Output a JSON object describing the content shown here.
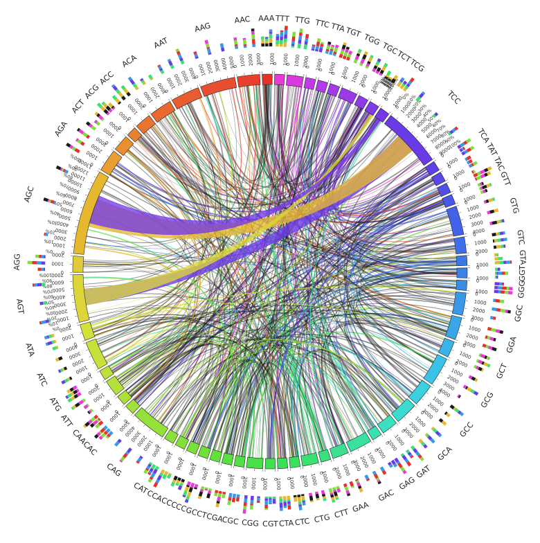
{
  "diagram": {
    "type": "chord",
    "segments": [
      {
        "label": "AAA",
        "color": "#e8302a",
        "max_tick": "1000"
      },
      {
        "label": "TTT",
        "color": "#e83ad6",
        "max_tick": "1000"
      },
      {
        "label": "TTG",
        "color": "#d83ae0",
        "max_tick": "2000"
      },
      {
        "label": "TTC",
        "color": "#c23ae8",
        "max_tick": "1000"
      },
      {
        "label": "TTA",
        "color": "#b33ae8",
        "max_tick": "1000"
      },
      {
        "label": "TGT",
        "color": "#a63ae8",
        "max_tick": "1000"
      },
      {
        "label": "TGG",
        "color": "#9a3ae8",
        "max_tick": "2000"
      },
      {
        "label": "TGC",
        "color": "#8f3ae8",
        "max_tick": "1000"
      },
      {
        "label": "TCT",
        "color": "#7f3ae8",
        "max_tick": "1000"
      },
      {
        "label": "TCG",
        "color": "#7438e8",
        "max_tick": "1000"
      },
      {
        "label": "TCC",
        "color": "#6a3ae8",
        "max_tick": "9000"
      },
      {
        "label": "TCA",
        "color": "#6040e8",
        "max_tick": "1000"
      },
      {
        "label": "TAT",
        "color": "#5a48e8",
        "max_tick": "1000"
      },
      {
        "label": "TAC",
        "color": "#5050e8",
        "max_tick": "1000"
      },
      {
        "label": "GTT",
        "color": "#4a58e8",
        "max_tick": "1000"
      },
      {
        "label": "GTG",
        "color": "#4462e8",
        "max_tick": "4000"
      },
      {
        "label": "GTC",
        "color": "#3e6ee8",
        "max_tick": "2000"
      },
      {
        "label": "GTA",
        "color": "#3a78e8",
        "max_tick": "1000"
      },
      {
        "label": "GGT",
        "color": "#3a82e8",
        "max_tick": "1000"
      },
      {
        "label": "GGG",
        "color": "#3a8ce8",
        "max_tick": "1000"
      },
      {
        "label": "GGC",
        "color": "#3a98e8",
        "max_tick": "3000"
      },
      {
        "label": "GGA",
        "color": "#3aa6e8",
        "max_tick": "3000"
      },
      {
        "label": "GCT",
        "color": "#3ab4e8",
        "max_tick": "2000"
      },
      {
        "label": "GCG",
        "color": "#3ac2e8",
        "max_tick": "4000"
      },
      {
        "label": "GCC",
        "color": "#3ad0e0",
        "max_tick": "3000"
      },
      {
        "label": "GCA",
        "color": "#3adcd0",
        "max_tick": "3000"
      },
      {
        "label": "GAT",
        "color": "#3ae0c0",
        "max_tick": "2000"
      },
      {
        "label": "GAG",
        "color": "#3ae0b0",
        "max_tick": "1000"
      },
      {
        "label": "GAC",
        "color": "#3ae0a0",
        "max_tick": "3000"
      },
      {
        "label": "GAA",
        "color": "#3ae090",
        "max_tick": "2000"
      },
      {
        "label": "CTT",
        "color": "#3ae080",
        "max_tick": "1000"
      },
      {
        "label": "CTG",
        "color": "#3ae070",
        "max_tick": "2000"
      },
      {
        "label": "CTC",
        "color": "#3ae060",
        "max_tick": "1000"
      },
      {
        "label": "CTA",
        "color": "#3ae058",
        "max_tick": "1000"
      },
      {
        "label": "CGT",
        "color": "#40e050",
        "max_tick": "1000"
      },
      {
        "label": "CGG",
        "color": "#48e04a",
        "max_tick": "2000"
      },
      {
        "label": "CGC",
        "color": "#50e044",
        "max_tick": "1000"
      },
      {
        "label": "CGA",
        "color": "#5ae040",
        "max_tick": "1000"
      },
      {
        "label": "CCT",
        "color": "#64e03a",
        "max_tick": "1000"
      },
      {
        "label": "CCG",
        "color": "#6ee03a",
        "max_tick": "1000"
      },
      {
        "label": "CCC",
        "color": "#78e03a",
        "max_tick": "1000"
      },
      {
        "label": "CCA",
        "color": "#82e03a",
        "max_tick": "1000"
      },
      {
        "label": "CAT",
        "color": "#8ce03a",
        "max_tick": "1000"
      },
      {
        "label": "CAG",
        "color": "#96e03a",
        "max_tick": "5000"
      },
      {
        "label": "CAC",
        "color": "#a0e03a",
        "max_tick": "1000"
      },
      {
        "label": "CAA",
        "color": "#aae03a",
        "max_tick": "1000"
      },
      {
        "label": "ATT",
        "color": "#b4e03a",
        "max_tick": "2000"
      },
      {
        "label": "ATG",
        "color": "#bee03a",
        "max_tick": "1000"
      },
      {
        "label": "ATC",
        "color": "#c8e03a",
        "max_tick": "4000"
      },
      {
        "label": "ATA",
        "color": "#d2e03a",
        "max_tick": "2000"
      },
      {
        "label": "AGT",
        "color": "#dcd63a",
        "max_tick": "7000"
      },
      {
        "label": "AGG",
        "color": "#e0cc3a",
        "max_tick": "2000"
      },
      {
        "label": "AGC",
        "color": "#e6b830",
        "max_tick": "13000"
      },
      {
        "label": "AGA",
        "color": "#e89e30",
        "max_tick": "3000"
      },
      {
        "label": "ACT",
        "color": "#e89030",
        "max_tick": "2000"
      },
      {
        "label": "ACG",
        "color": "#e88230",
        "max_tick": "1000"
      },
      {
        "label": "ACC",
        "color": "#e87430",
        "max_tick": "2000"
      },
      {
        "label": "ACA",
        "color": "#e86830",
        "max_tick": "3000"
      },
      {
        "label": "AAT",
        "color": "#e85c30",
        "max_tick": "4000"
      },
      {
        "label": "AAG",
        "color": "#e84e30",
        "max_tick": "5000"
      },
      {
        "label": "AAC",
        "color": "#e8402c",
        "max_tick": "3000"
      }
    ],
    "percent_ticks": [
      "0%",
      "10%",
      "20%",
      "30%",
      "40%",
      "50%",
      "60%",
      "70%",
      "80%",
      "90%",
      "100%"
    ],
    "major_flows": [
      {
        "from": "TCC",
        "to": "AGT",
        "color": "#6a3ae8"
      },
      {
        "from": "AGC",
        "to": "TCC",
        "color": "#e6b830"
      },
      {
        "from": "TCT",
        "to": "AGT",
        "color": "#dcd63a"
      },
      {
        "from": "AGC",
        "to": "TCG",
        "color": "#7438e8"
      }
    ]
  }
}
